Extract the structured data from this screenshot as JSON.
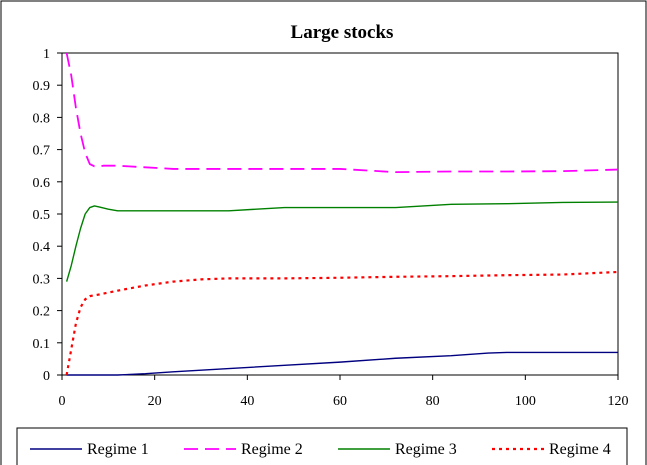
{
  "chart_data": {
    "type": "line",
    "title": "Large stocks",
    "xlabel": "",
    "ylabel": "",
    "xlim": [
      0,
      120
    ],
    "ylim": [
      0,
      1
    ],
    "x_ticks": [
      0,
      20,
      40,
      60,
      80,
      100,
      120
    ],
    "y_ticks": [
      0,
      0.1,
      0.2,
      0.3,
      0.4,
      0.5,
      0.6,
      0.7,
      0.8,
      0.9,
      1
    ],
    "y_tick_labels": [
      "0",
      "0.1",
      "0.2",
      "0.3",
      "0.4",
      "0.5",
      "0.6",
      "0.7",
      "0.8",
      "0.9",
      "1"
    ],
    "grid": false,
    "legend_position": "bottom",
    "series": [
      {
        "name": "Regime 1",
        "color": "#000080",
        "style": "solid",
        "points": [
          [
            1,
            0
          ],
          [
            12,
            0
          ],
          [
            18,
            0.004
          ],
          [
            24,
            0.01
          ],
          [
            36,
            0.02
          ],
          [
            48,
            0.03
          ],
          [
            60,
            0.04
          ],
          [
            72,
            0.052
          ],
          [
            84,
            0.06
          ],
          [
            92,
            0.068
          ],
          [
            96,
            0.07
          ],
          [
            108,
            0.07
          ],
          [
            120,
            0.07
          ]
        ]
      },
      {
        "name": "Regime 2",
        "color": "#ff00ff",
        "style": "dashed",
        "points": [
          [
            1,
            1
          ],
          [
            2,
            0.93
          ],
          [
            3,
            0.83
          ],
          [
            4,
            0.75
          ],
          [
            5,
            0.69
          ],
          [
            6,
            0.655
          ],
          [
            7,
            0.648
          ],
          [
            8,
            0.648
          ],
          [
            9,
            0.65
          ],
          [
            12,
            0.65
          ],
          [
            18,
            0.645
          ],
          [
            24,
            0.64
          ],
          [
            36,
            0.64
          ],
          [
            48,
            0.64
          ],
          [
            60,
            0.64
          ],
          [
            72,
            0.63
          ],
          [
            84,
            0.632
          ],
          [
            96,
            0.632
          ],
          [
            108,
            0.633
          ],
          [
            120,
            0.638
          ]
        ]
      },
      {
        "name": "Regime 3",
        "color": "#008000",
        "style": "solid",
        "points": [
          [
            1,
            0.29
          ],
          [
            2,
            0.34
          ],
          [
            3,
            0.4
          ],
          [
            4,
            0.455
          ],
          [
            5,
            0.5
          ],
          [
            6,
            0.52
          ],
          [
            7,
            0.525
          ],
          [
            8,
            0.522
          ],
          [
            10,
            0.515
          ],
          [
            12,
            0.51
          ],
          [
            24,
            0.51
          ],
          [
            36,
            0.51
          ],
          [
            48,
            0.52
          ],
          [
            60,
            0.52
          ],
          [
            72,
            0.52
          ],
          [
            84,
            0.53
          ],
          [
            96,
            0.532
          ],
          [
            108,
            0.536
          ],
          [
            120,
            0.537
          ]
        ]
      },
      {
        "name": "Regime 4",
        "color": "#ff0000",
        "style": "dotted",
        "points": [
          [
            1,
            0
          ],
          [
            2,
            0.08
          ],
          [
            3,
            0.16
          ],
          [
            4,
            0.21
          ],
          [
            5,
            0.235
          ],
          [
            6,
            0.245
          ],
          [
            8,
            0.25
          ],
          [
            12,
            0.262
          ],
          [
            18,
            0.278
          ],
          [
            24,
            0.29
          ],
          [
            30,
            0.297
          ],
          [
            36,
            0.3
          ],
          [
            48,
            0.3
          ],
          [
            60,
            0.302
          ],
          [
            72,
            0.305
          ],
          [
            84,
            0.307
          ],
          [
            96,
            0.31
          ],
          [
            108,
            0.312
          ],
          [
            120,
            0.32
          ]
        ]
      }
    ]
  }
}
